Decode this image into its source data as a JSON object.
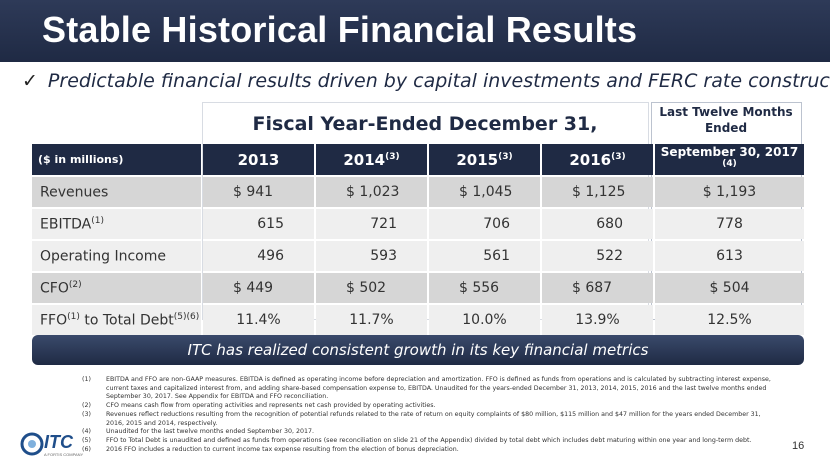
{
  "title": "Stable Historical Financial Results",
  "bullet": {
    "check": "✓",
    "text": "Predictable financial results driven by capital investments and FERC rate construct"
  },
  "table": {
    "group_header": "Fiscal Year-Ended December 31,",
    "ltm_header": "Last Twelve Months Ended",
    "units_label": "($ in millions)",
    "columns": [
      {
        "label": "2013",
        "note": ""
      },
      {
        "label": "2014",
        "note": "(3)"
      },
      {
        "label": "2015",
        "note": "(3)"
      },
      {
        "label": "2016",
        "note": "(3)"
      },
      {
        "label": "September 30, 2017 ",
        "note": "(4)"
      }
    ],
    "rows": [
      {
        "label": "Revenues",
        "label_note": "",
        "label_suffix": "",
        "suffix_note": "",
        "values": [
          "$ 941",
          "$ 1,023",
          "$ 1,045",
          "$ 1,125",
          "$ 1,193"
        ]
      },
      {
        "label": "EBITDA",
        "label_note": "(1)",
        "label_suffix": "",
        "suffix_note": "",
        "values": [
          "615",
          "721",
          "706",
          "680",
          "778"
        ]
      },
      {
        "label": "Operating Income",
        "label_note": "",
        "label_suffix": "",
        "suffix_note": "",
        "values": [
          "496",
          "593",
          "561",
          "522",
          "613"
        ]
      },
      {
        "label": "CFO",
        "label_note": "(2)",
        "label_suffix": "",
        "suffix_note": "",
        "values": [
          "$ 449",
          "$  502",
          "$ 556",
          "$ 687",
          "$ 504"
        ]
      },
      {
        "label": "FFO",
        "label_note": "(1)",
        "label_suffix": " to Total Debt",
        "suffix_note": "(5)(6)",
        "values": [
          "11.4%",
          "11.7%",
          "10.0%",
          "13.9%",
          "12.5%"
        ]
      }
    ]
  },
  "banner": "ITC has realized consistent growth in its key financial metrics",
  "footnotes": [
    {
      "num": "(1)",
      "text": "EBITDA and FFO are non-GAAP measures.  EBITDA is defined as operating income before depreciation and amortization.  FFO is defined as funds from operations and is calculated by subtracting interest expense, current taxes and capitalized interest from, and adding share-based compensation expense to, EBITDA. Unaudited for the years-ended December 31, 2013, 2014, 2015, 2016 and the last twelve months ended September 30, 2017. See Appendix for EBITDA and FFO reconciliation."
    },
    {
      "num": "(2)",
      "text": "CFO means cash flow from operating activities and represents net cash provided by operating activities."
    },
    {
      "num": "(3)",
      "text": "Revenues reflect reductions resulting from the recognition of potential refunds related to the rate of return on equity complaints of $80 million, $115 million and $47 million for the years ended December 31, 2016, 2015 and 2014, respectively."
    },
    {
      "num": "(4)",
      "text": "Unaudited for the last twelve months ended September 30, 2017."
    },
    {
      "num": "(5)",
      "text": "FFO to Total Debt is unaudited and defined as funds from operations (see reconciliation on slide 21 of the Appendix) divided by total debt which includes debt maturing within one year and long-term debt."
    },
    {
      "num": "(6)",
      "text": "2016 FFO includes a reduction to current income tax expense resulting from the election of bonus depreciation."
    }
  ],
  "logo": {
    "brand": "ITC",
    "sub": "A FORTIS COMPANY"
  },
  "page_number": "16",
  "colors": {
    "navy": "#1f2a44",
    "row_dark": "#d6d6d6",
    "row_light": "#efefef"
  }
}
